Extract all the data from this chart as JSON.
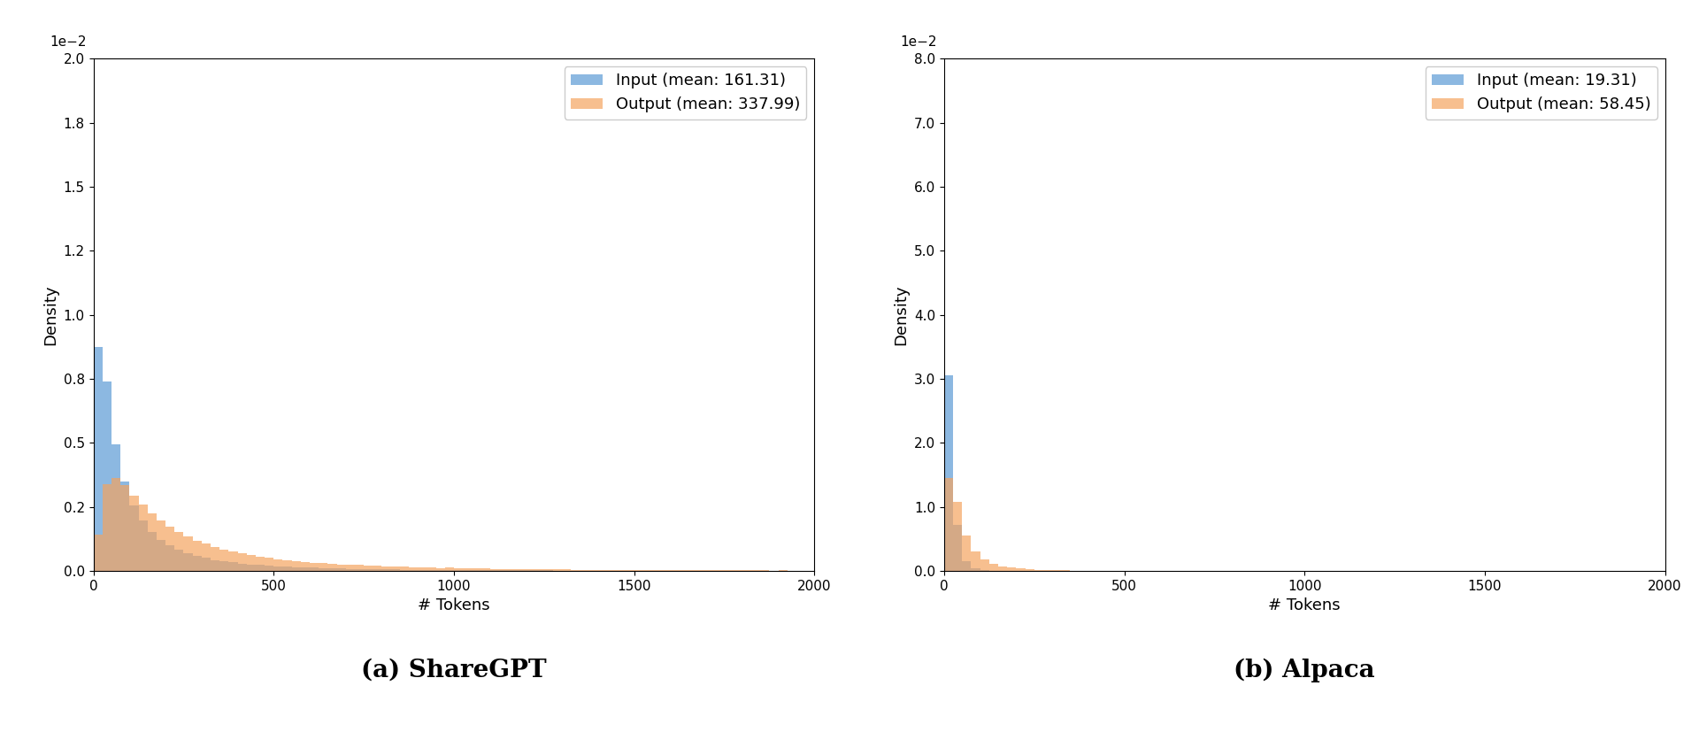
{
  "sharegpt": {
    "input_mean": 161.31,
    "output_mean": 337.99,
    "input_color": "#5b9bd5",
    "output_color": "#f4a460",
    "xlabel": "# Tokens",
    "ylabel": "Density",
    "xlim": [
      0,
      2000
    ],
    "ylim": [
      0,
      0.02
    ],
    "xticks": [
      0,
      500,
      1000,
      1500,
      2000
    ],
    "title": "(a) ShareGPT",
    "legend_input": "Input (mean: 161.31)",
    "legend_output": "Output (mean: 337.99)"
  },
  "alpaca": {
    "input_mean": 19.31,
    "output_mean": 58.45,
    "input_color": "#5b9bd5",
    "output_color": "#f4a460",
    "xlabel": "# Tokens",
    "ylabel": "Density",
    "xlim": [
      0,
      2000
    ],
    "ylim": [
      0,
      0.08
    ],
    "xticks": [
      0,
      500,
      1000,
      1500,
      2000
    ],
    "title": "(b) Alpaca",
    "legend_input": "Input (mean: 19.31)",
    "legend_output": "Output (mean: 58.45)"
  },
  "bins": 80,
  "alpha": 0.7,
  "label_fontsize": 13,
  "tick_fontsize": 11,
  "legend_fontsize": 13,
  "caption_fontsize": 20,
  "fig_background": "#ffffff"
}
